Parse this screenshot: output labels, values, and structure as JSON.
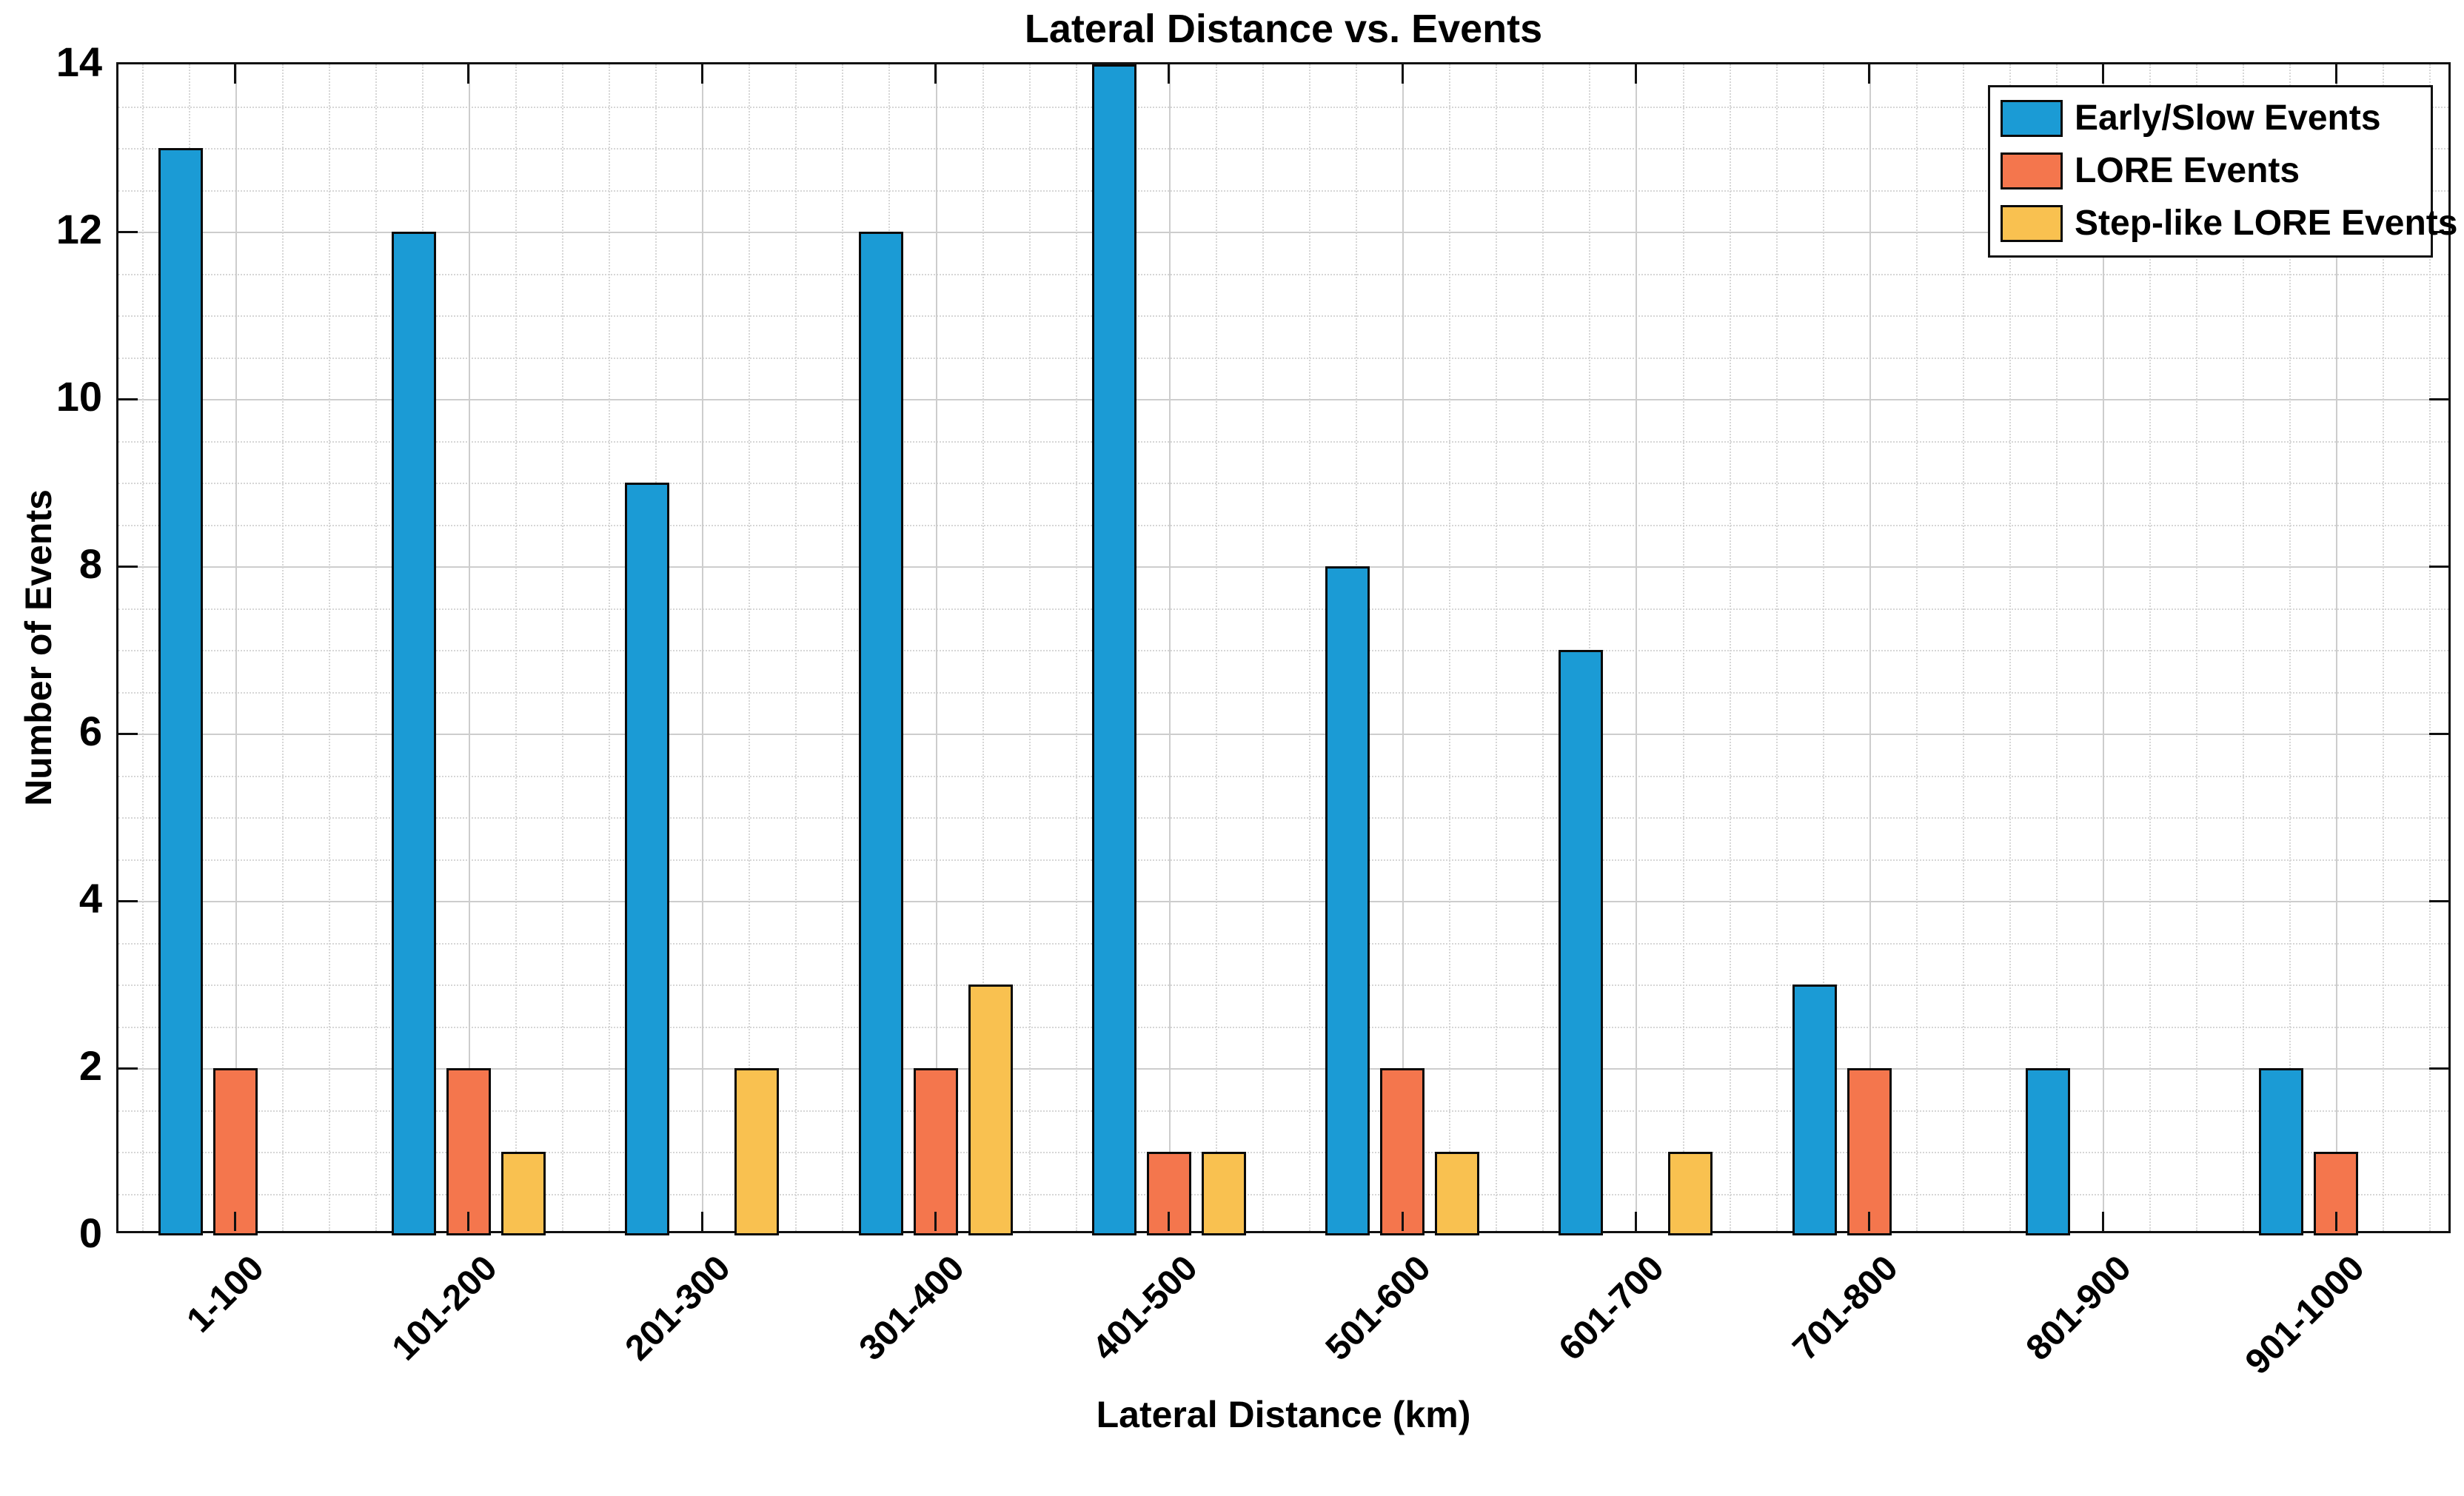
{
  "chart_data": {
    "type": "bar",
    "title": "Lateral Distance vs. Events",
    "xlabel": "Lateral Distance (km)",
    "ylabel": "Number of Events",
    "categories": [
      "1-100",
      "101-200",
      "201-300",
      "301-400",
      "401-500",
      "501-600",
      "601-700",
      "701-800",
      "801-900",
      "901-1000"
    ],
    "series": [
      {
        "name": "Early/Slow Events",
        "color": "#1B9BD5",
        "values": [
          13,
          12,
          9,
          12,
          14,
          8,
          7,
          3,
          2,
          2
        ]
      },
      {
        "name": "LORE Events",
        "color": "#F4764D",
        "values": [
          2,
          2,
          0,
          2,
          1,
          2,
          0,
          2,
          0,
          1
        ]
      },
      {
        "name": "Step-like LORE Events",
        "color": "#F9C150",
        "values": [
          0,
          1,
          2,
          3,
          1,
          1,
          1,
          0,
          0,
          0
        ]
      }
    ],
    "ylim": [
      0,
      14
    ],
    "yticks": [
      0,
      2,
      4,
      6,
      8,
      10,
      12,
      14
    ],
    "grid": {
      "major": true,
      "minor": true,
      "y_major_step": 2,
      "y_minor_step": 0.5,
      "x_minor_offsets": [
        0.1,
        0.3,
        0.7,
        0.9
      ]
    },
    "legend_position": "northeast",
    "colors": {
      "bar_edge": "#0a0a0a",
      "grid_major": "#cdcdcd",
      "grid_minor": "#d6d6d6",
      "axis": "#111111",
      "text": "#000000"
    }
  }
}
